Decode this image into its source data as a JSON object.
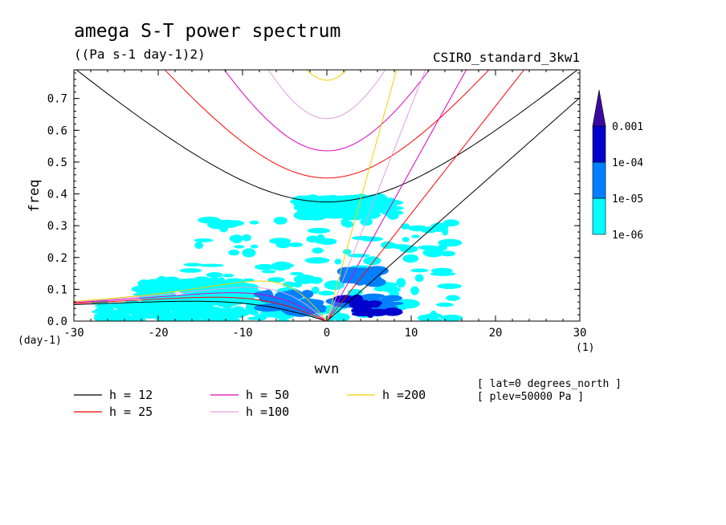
{
  "title": "amega S-T power spectrum",
  "subtitle": "((Pa s-1 day-1)2)",
  "dataset": "CSIRO_standard_3kw1",
  "notes": [
    "[ lat=0 degrees_north ]",
    "[ plev=50000 Pa ]"
  ],
  "chart_data": {
    "type": "heatmap",
    "xlabel": "wvn",
    "ylabel": "freq",
    "x_units": "(1)",
    "y_units": "(day-1)",
    "xlim": [
      -30,
      30
    ],
    "ylim": [
      0,
      0.79
    ],
    "x_ticks": [
      -30,
      -20,
      -10,
      0,
      10,
      20,
      30
    ],
    "x_tick_labels": [
      "-30",
      "-20",
      "-10",
      "0",
      "10",
      "20",
      "30"
    ],
    "y_ticks": [
      0.0,
      0.1,
      0.2,
      0.3,
      0.4,
      0.5,
      0.6,
      0.7
    ],
    "y_tick_labels": [
      "0.0",
      "0.1",
      "0.2",
      "0.3",
      "0.4",
      "0.5",
      "0.6",
      "0.7"
    ],
    "colorbar": {
      "levels": [
        "1e-06",
        "1e-05",
        "1e-04",
        "0.001"
      ],
      "colors": [
        "#00ffff",
        "#0080ff",
        "#0000cc",
        "#3a0aa0"
      ],
      "extend": "max"
    },
    "dispersion_curves": [
      {
        "name": "h = 12",
        "h": 12,
        "color": "#000000"
      },
      {
        "name": "h = 25",
        "h": 25,
        "color": "#ff0000"
      },
      {
        "name": "h = 50",
        "h": 50,
        "color": "#e000c0"
      },
      {
        "name": "h =100",
        "h": 100,
        "color": "#e0a0e0"
      },
      {
        "name": "h =200",
        "h": 200,
        "color": "#f0d000"
      }
    ],
    "power_regions": [
      {
        "level": 0,
        "x": [
          -27,
          -4
        ],
        "y": [
          0.0,
          0.06
        ]
      },
      {
        "level": 0,
        "x": [
          -22,
          -9
        ],
        "y": [
          0.06,
          0.13
        ]
      },
      {
        "level": 0,
        "x": [
          -17,
          15
        ],
        "y": [
          0.0,
          0.33
        ]
      },
      {
        "level": 0,
        "x": [
          -3,
          8
        ],
        "y": [
          0.33,
          0.39
        ]
      },
      {
        "level": 1,
        "x": [
          -8,
          -2
        ],
        "y": [
          0.04,
          0.09
        ]
      },
      {
        "level": 1,
        "x": [
          -4,
          -1
        ],
        "y": [
          0.02,
          0.06
        ]
      },
      {
        "level": 1,
        "x": [
          1,
          9
        ],
        "y": [
          0.03,
          0.08
        ]
      },
      {
        "level": 1,
        "x": [
          2,
          6
        ],
        "y": [
          0.12,
          0.16
        ]
      },
      {
        "level": 2,
        "x": [
          1,
          6
        ],
        "y": [
          0.045,
          0.075
        ]
      },
      {
        "level": 2,
        "x": [
          4,
          8
        ],
        "y": [
          0.02,
          0.035
        ]
      }
    ]
  },
  "legend": {
    "entries": [
      {
        "label": "h = 12",
        "color": "#000000"
      },
      {
        "label": "h = 25",
        "color": "#ff0000"
      },
      {
        "label": "h = 50",
        "color": "#e000c0"
      },
      {
        "label": "h =100",
        "color": "#e0a0e0"
      },
      {
        "label": "h =200",
        "color": "#f0d000"
      }
    ]
  }
}
